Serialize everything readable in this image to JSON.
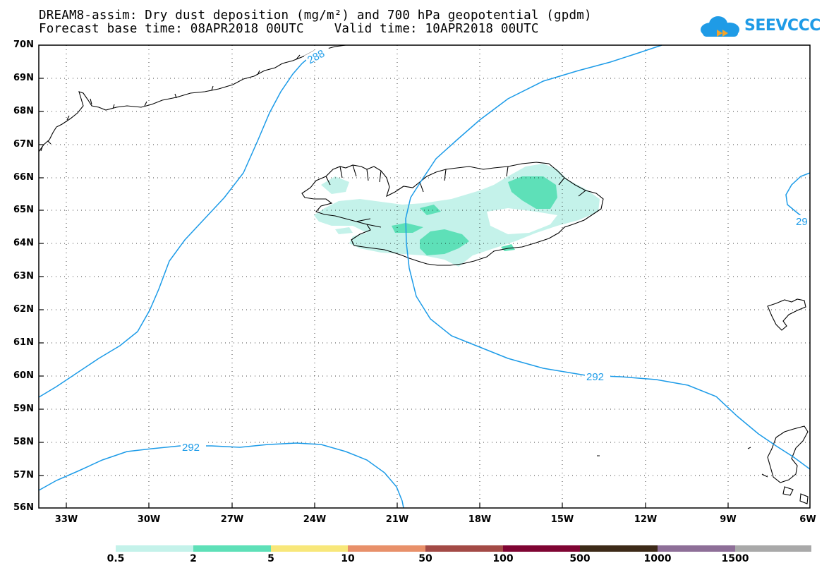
{
  "header": {
    "title_line1": "DREAM8-assim: Dry dust deposition (mg/m²) and 700 hPa geopotential (gpdm)",
    "title_line2": "Forecast base time: 08APR2018 00UTC    Valid time: 10APR2018 00UTC",
    "logo_text": "SEEVCCC"
  },
  "axes": {
    "lat_labels": [
      "70N",
      "69N",
      "68N",
      "67N",
      "66N",
      "65N",
      "64N",
      "63N",
      "62N",
      "61N",
      "60N",
      "59N",
      "58N",
      "57N",
      "56N"
    ],
    "lon_labels": [
      "33W",
      "30W",
      "27W",
      "24W",
      "21W",
      "18W",
      "15W",
      "12W",
      "9W",
      "6W"
    ]
  },
  "contours": {
    "labels": [
      "288",
      "292",
      "292",
      "29"
    ]
  },
  "colorbar": {
    "labels": [
      "0.5",
      "2",
      "5",
      "10",
      "50",
      "100",
      "500",
      "1000",
      "1500"
    ],
    "colors": [
      "#c4f2ea",
      "#5ee0b8",
      "#f8e77a",
      "#e8906a",
      "#a34a46",
      "#7f0533",
      "#3d2a18",
      "#8e6f98",
      "#a9a9a9"
    ]
  },
  "colors": {
    "contour": "#1c9be8",
    "coast": "#000000",
    "frame": "#000000"
  }
}
